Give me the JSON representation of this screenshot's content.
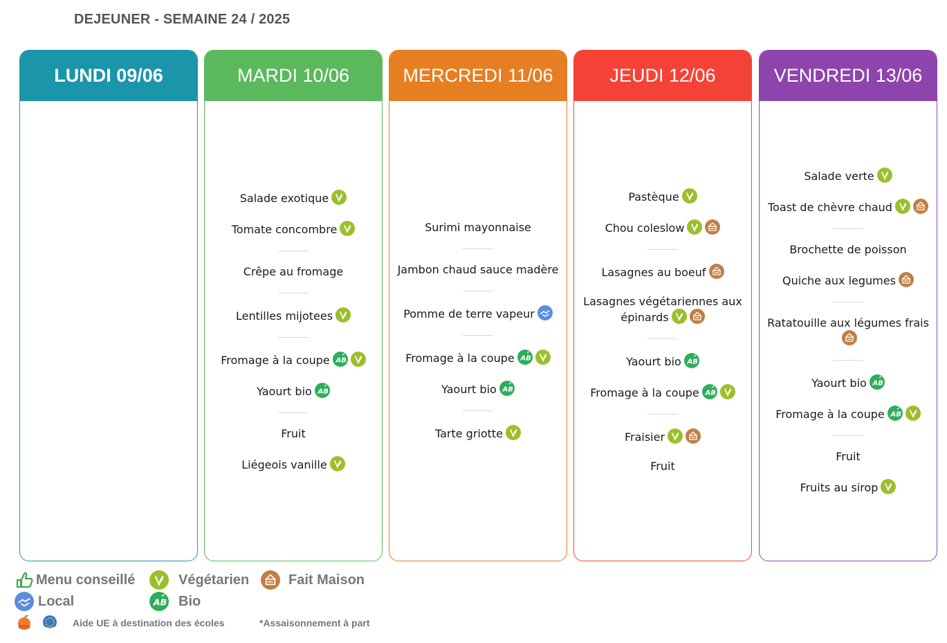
{
  "title": "DEJEUNER - SEMAINE 24 / 2025",
  "colors": {
    "lundi": "#1b95a9",
    "mardi": "#5cb85c",
    "mercredi": "#e67e22",
    "jeudi": "#f44336",
    "vendredi": "#8e44ad",
    "vegetarien": "#9bbf2c",
    "bio": "#2eae5b",
    "fait_maison": "#c07f44",
    "local": "#5b8cde"
  },
  "days": [
    {
      "id": "lundi",
      "label": "LUNDI 09/06",
      "groups": []
    },
    {
      "id": "mardi",
      "label": "MARDI 10/06",
      "groups": [
        [
          {
            "name": "Salade exotique",
            "icons": [
              "vegetarien"
            ]
          },
          {
            "name": "Tomate concombre",
            "icons": [
              "vegetarien"
            ]
          }
        ],
        [
          {
            "name": "Crêpe au fromage",
            "icons": []
          }
        ],
        [
          {
            "name": "Lentilles mijotees",
            "icons": [
              "vegetarien"
            ]
          }
        ],
        [
          {
            "name": "Fromage à la coupe",
            "icons": [
              "bio",
              "vegetarien"
            ]
          },
          {
            "name": "Yaourt bio",
            "icons": [
              "bio"
            ]
          }
        ],
        [
          {
            "name": "Fruit",
            "icons": []
          },
          {
            "name": "Liégeois vanille",
            "icons": [
              "vegetarien"
            ]
          }
        ]
      ]
    },
    {
      "id": "mercredi",
      "label": "MERCREDI 11/06",
      "groups": [
        [
          {
            "name": "Surimi mayonnaise",
            "icons": []
          }
        ],
        [
          {
            "name": "Jambon chaud sauce madère",
            "icons": []
          }
        ],
        [
          {
            "name": "Pomme de terre vapeur",
            "icons": [
              "local"
            ]
          }
        ],
        [
          {
            "name": "Fromage à la coupe",
            "icons": [
              "bio",
              "vegetarien"
            ]
          },
          {
            "name": "Yaourt bio",
            "icons": [
              "bio"
            ]
          }
        ],
        [
          {
            "name": "Tarte griotte",
            "icons": [
              "vegetarien"
            ]
          }
        ]
      ]
    },
    {
      "id": "jeudi",
      "label": "JEUDI 12/06",
      "groups": [
        [
          {
            "name": "Pastèque",
            "icons": [
              "vegetarien"
            ]
          },
          {
            "name": "Chou coleslow",
            "icons": [
              "vegetarien",
              "fait_maison"
            ]
          }
        ],
        [
          {
            "name": "Lasagnes au boeuf",
            "icons": [
              "fait_maison"
            ]
          },
          {
            "name": "Lasagnes végétariennes aux épinards",
            "icons": [
              "vegetarien",
              "fait_maison"
            ]
          }
        ],
        [
          {
            "name": "Yaourt bio",
            "icons": [
              "bio"
            ]
          },
          {
            "name": "Fromage à la coupe",
            "icons": [
              "bio",
              "vegetarien"
            ]
          }
        ],
        [
          {
            "name": "Fraisier",
            "icons": [
              "vegetarien",
              "fait_maison"
            ]
          },
          {
            "name": "Fruit",
            "icons": []
          }
        ]
      ]
    },
    {
      "id": "vendredi",
      "label": "VENDREDI 13/06",
      "groups": [
        [
          {
            "name": "Salade verte",
            "icons": [
              "vegetarien"
            ]
          },
          {
            "name": "Toast de chèvre chaud",
            "icons": [
              "vegetarien",
              "fait_maison"
            ]
          }
        ],
        [
          {
            "name": "Brochette de poisson",
            "icons": []
          },
          {
            "name": "Quiche aux legumes",
            "icons": [
              "fait_maison"
            ]
          }
        ],
        [
          {
            "name": "Ratatouille aux légumes frais",
            "icons": [
              "fait_maison"
            ]
          }
        ],
        [
          {
            "name": "Yaourt bio",
            "icons": [
              "bio"
            ]
          },
          {
            "name": "Fromage à la coupe",
            "icons": [
              "bio",
              "vegetarien"
            ]
          }
        ],
        [
          {
            "name": "Fruit",
            "icons": []
          },
          {
            "name": "Fruits au sirop",
            "icons": [
              "vegetarien"
            ]
          }
        ]
      ]
    }
  ],
  "legend": {
    "menu_conseille": "Menu conseillé",
    "vegetarien": "Végétarien",
    "fait_maison": "Fait Maison",
    "local": "Local",
    "bio": "Bio"
  },
  "footer": {
    "aide_ue": "Aide UE à destination des écoles",
    "assaisonnement": "*Assaisonnement à part"
  }
}
